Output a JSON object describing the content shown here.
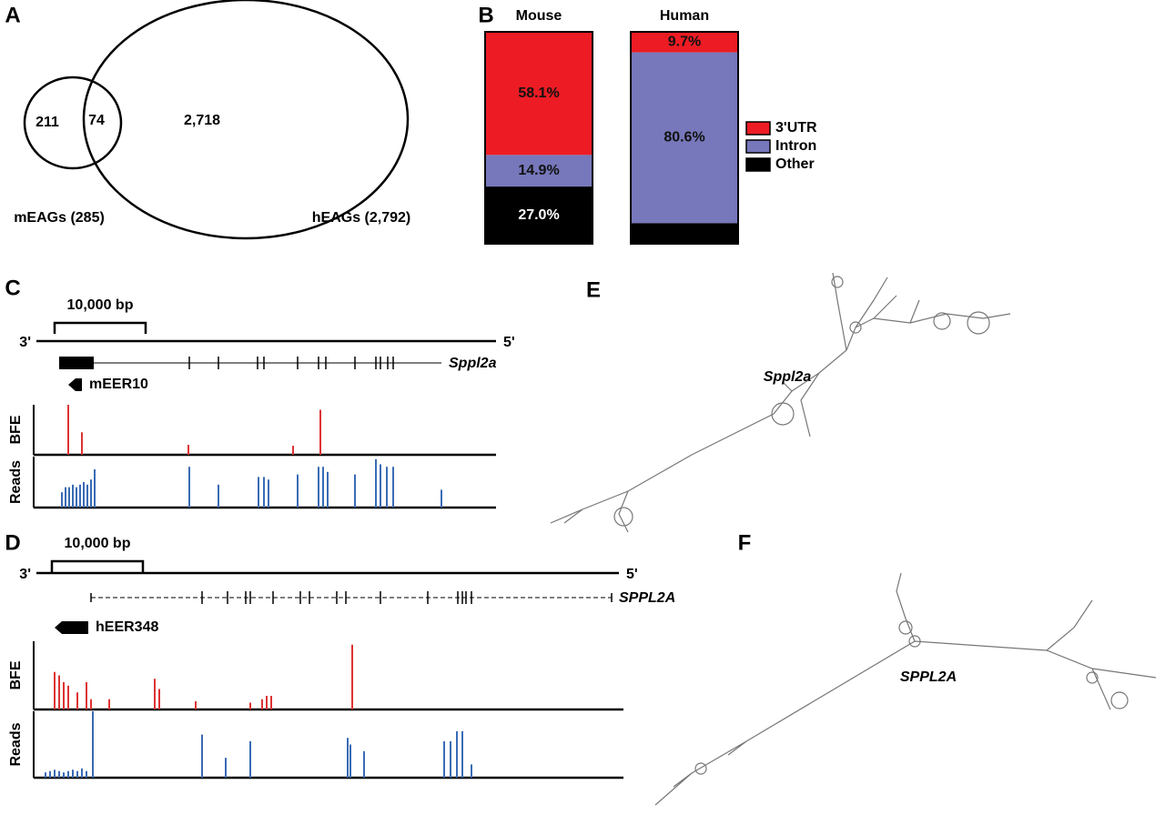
{
  "chart_data": [
    {
      "type": "venn",
      "panel": "A",
      "sets": [
        "mEAGs (285)",
        "hEAGs (2,792)"
      ],
      "values": [
        211,
        74,
        2718
      ],
      "value_labels": [
        "211",
        "74",
        "2,718"
      ]
    },
    {
      "type": "stacked_bar",
      "panel": "B",
      "categories": [
        "Mouse",
        "Human"
      ],
      "ylim": [
        0,
        100
      ],
      "series": [
        {
          "name": "3'UTR",
          "color": "#ed1c24",
          "values": [
            58.1,
            9.7
          ],
          "value_labels": [
            "58.1%",
            "9.7%"
          ]
        },
        {
          "name": "Intron",
          "color": "#7777bb",
          "values": [
            14.9,
            80.6
          ],
          "value_labels": [
            "14.9%",
            "80.6%"
          ]
        },
        {
          "name": "Other",
          "color": "#000000",
          "values": [
            27.0,
            9.7
          ],
          "value_labels": [
            "27.0%",
            null
          ]
        }
      ]
    },
    {
      "type": "genome_track",
      "panel": "C",
      "end_labels": [
        "3'",
        "5'"
      ],
      "length": 50500,
      "scale_label": "10,000 bp",
      "scale_start": 2000,
      "scale_bp": 10000,
      "gene": {
        "name": "Sppl2a",
        "start": 2500,
        "end": 44500,
        "utr": [
          2500,
          6300
        ],
        "exons": [
          16800,
          20000,
          24300,
          25000,
          28700,
          31000,
          31800,
          35000,
          37300,
          37800,
          38600,
          39200
        ]
      },
      "element": {
        "name": "mEER10",
        "start": 3500,
        "end": 5000
      },
      "ylim": [
        0,
        100
      ],
      "tracks": [
        {
          "name": "BFE",
          "color": "#dd3333",
          "x": [
            3500,
            5000,
            16700,
            28200,
            31200
          ],
          "values": [
            100,
            45,
            20,
            18,
            90
          ]
        },
        {
          "name": "Reads",
          "color": "#3a6bb5",
          "x": [
            2800,
            3200,
            3600,
            4000,
            4400,
            4800,
            5200,
            5600,
            6000,
            6400,
            16800,
            20000,
            24400,
            25000,
            25500,
            28700,
            31000,
            31500,
            32000,
            35000,
            37300,
            37800,
            38500,
            39200,
            44500
          ],
          "values": [
            30,
            40,
            40,
            45,
            40,
            45,
            50,
            45,
            55,
            75,
            80,
            45,
            60,
            60,
            55,
            65,
            80,
            80,
            70,
            65,
            95,
            85,
            80,
            80,
            35
          ]
        }
      ]
    },
    {
      "type": "genome_track",
      "panel": "D",
      "end_labels": [
        "3'",
        "5'"
      ],
      "length": 64000,
      "scale_label": "10,000 bp",
      "scale_start": 1700,
      "scale_bp": 10000,
      "gene": {
        "name": "SPPL2A",
        "start": 6000,
        "end": 63200,
        "exons": [
          18200,
          21000,
          23000,
          23500,
          26000,
          29000,
          30000,
          33000,
          34000,
          37800,
          43000,
          46300,
          46800,
          47200,
          47800
        ]
      },
      "element": {
        "name": "hEER348",
        "start": 2000,
        "end": 5700
      },
      "ylim": [
        0,
        100
      ],
      "tracks": [
        {
          "name": "BFE",
          "color": "#dd3333",
          "x": [
            2000,
            2500,
            3000,
            3500,
            4500,
            5500,
            6000,
            8000,
            13000,
            13500,
            17500,
            23500,
            24800,
            25300,
            25800,
            34700
          ],
          "values": [
            55,
            50,
            40,
            35,
            25,
            40,
            15,
            15,
            45,
            30,
            12,
            10,
            15,
            20,
            20,
            95
          ]
        },
        {
          "name": "Reads",
          "color": "#3a6bb5",
          "x": [
            1000,
            1500,
            2000,
            2500,
            3000,
            3500,
            4000,
            4500,
            5000,
            5500,
            6200,
            18200,
            20800,
            23500,
            34200,
            34500,
            36000,
            44800,
            45500,
            46200,
            46800,
            47800
          ],
          "values": [
            8,
            10,
            12,
            10,
            8,
            10,
            12,
            10,
            14,
            10,
            100,
            65,
            30,
            55,
            60,
            50,
            40,
            55,
            55,
            70,
            70,
            20
          ]
        }
      ]
    }
  ],
  "structures": [
    {
      "panel": "E",
      "label": "Sppl2a"
    },
    {
      "panel": "F",
      "label": "SPPL2A"
    }
  ]
}
